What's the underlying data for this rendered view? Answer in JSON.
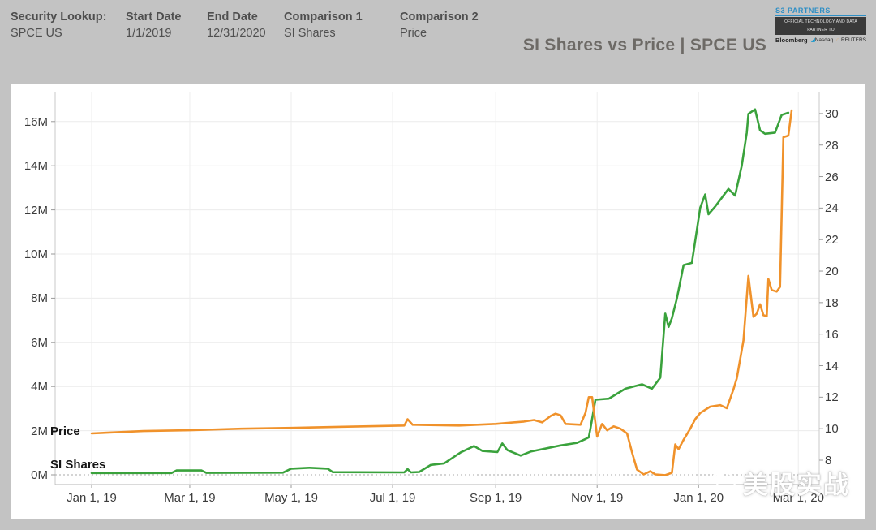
{
  "header": {
    "fields": [
      {
        "label": "Security Lookup:",
        "value": "SPCE US"
      },
      {
        "label": "Start Date",
        "value": "1/1/2019"
      },
      {
        "label": "End Date",
        "value": "12/31/2020"
      },
      {
        "label": "Comparison 1",
        "value": "SI Shares"
      },
      {
        "label": "Comparison 2",
        "value": "Price"
      }
    ],
    "title": "SI Shares vs Price | SPCE US",
    "logo": {
      "brand": "S3 PARTNERS",
      "tagline": "OFFICIAL TECHNOLOGY AND DATA PARTNER TO",
      "partners": [
        "Bloomberg",
        "Nasdaq",
        "REUTERS"
      ]
    }
  },
  "watermark": {
    "text": "美股实战"
  },
  "chart_data": {
    "type": "line",
    "title": "SI Shares vs Price | SPCE US",
    "grid": "on",
    "x_axis": {
      "tick_labels": [
        "Jan 1, 19",
        "Mar 1, 19",
        "May 1, 19",
        "Jul 1, 19",
        "Sep 1, 19",
        "Nov 1, 19",
        "Jan 1, 20",
        "Mar 1, 20"
      ],
      "tick_dates": [
        "2019-01-01",
        "2019-03-01",
        "2019-05-01",
        "2019-07-01",
        "2019-09-01",
        "2019-11-01",
        "2020-01-01",
        "2020-03-01"
      ]
    },
    "left_axis": {
      "title": "SI Shares",
      "tick_labels": [
        "0M",
        "2M",
        "4M",
        "6M",
        "8M",
        "10M",
        "12M",
        "14M",
        "16M"
      ],
      "tick_values": [
        0,
        2,
        4,
        6,
        8,
        10,
        12,
        14,
        16
      ],
      "unit": "millions of shares",
      "range": [
        0,
        16
      ]
    },
    "right_axis": {
      "title": "Price",
      "tick_labels": [
        "8",
        "10",
        "12",
        "14",
        "16",
        "18",
        "20",
        "22",
        "24",
        "26",
        "28",
        "30"
      ],
      "tick_values": [
        8,
        10,
        12,
        14,
        16,
        18,
        20,
        22,
        24,
        26,
        28,
        30
      ],
      "unit": "USD",
      "range": [
        8,
        30
      ]
    },
    "zero_line": {
      "style": "dotted",
      "left_axis_value": 0
    },
    "series": [
      {
        "name": "SI Shares",
        "axis": "left",
        "color": "#3aa23c",
        "points": [
          [
            "2019-01-01",
            0.08
          ],
          [
            "2019-02-18",
            0.08
          ],
          [
            "2019-02-21",
            0.2
          ],
          [
            "2019-03-08",
            0.2
          ],
          [
            "2019-03-11",
            0.09
          ],
          [
            "2019-04-26",
            0.1
          ],
          [
            "2019-05-01",
            0.28
          ],
          [
            "2019-05-12",
            0.32
          ],
          [
            "2019-05-23",
            0.28
          ],
          [
            "2019-05-26",
            0.12
          ],
          [
            "2019-07-08",
            0.11
          ],
          [
            "2019-07-10",
            0.26
          ],
          [
            "2019-07-12",
            0.11
          ],
          [
            "2019-07-17",
            0.13
          ],
          [
            "2019-07-24",
            0.45
          ],
          [
            "2019-08-01",
            0.52
          ],
          [
            "2019-08-11",
            1.02
          ],
          [
            "2019-08-19",
            1.3
          ],
          [
            "2019-08-24",
            1.08
          ],
          [
            "2019-09-02",
            1.03
          ],
          [
            "2019-09-05",
            1.42
          ],
          [
            "2019-09-08",
            1.12
          ],
          [
            "2019-09-16",
            0.87
          ],
          [
            "2019-09-22",
            1.05
          ],
          [
            "2019-10-10",
            1.33
          ],
          [
            "2019-10-20",
            1.45
          ],
          [
            "2019-10-25",
            1.62
          ],
          [
            "2019-10-27",
            1.7
          ],
          [
            "2019-10-28",
            2.1
          ],
          [
            "2019-10-31",
            3.4
          ],
          [
            "2019-11-08",
            3.45
          ],
          [
            "2019-11-18",
            3.9
          ],
          [
            "2019-11-28",
            4.1
          ],
          [
            "2019-12-04",
            3.9
          ],
          [
            "2019-12-09",
            4.4
          ],
          [
            "2019-12-12",
            7.3
          ],
          [
            "2019-12-14",
            6.7
          ],
          [
            "2019-12-16",
            7.1
          ],
          [
            "2019-12-19",
            8.0
          ],
          [
            "2019-12-23",
            9.5
          ],
          [
            "2019-12-28",
            9.6
          ],
          [
            "2020-01-02",
            12.1
          ],
          [
            "2020-01-05",
            12.7
          ],
          [
            "2020-01-07",
            11.8
          ],
          [
            "2020-01-11",
            12.15
          ],
          [
            "2020-01-19",
            12.95
          ],
          [
            "2020-01-23",
            12.65
          ],
          [
            "2020-01-27",
            14.0
          ],
          [
            "2020-01-30",
            15.5
          ],
          [
            "2020-01-31",
            16.35
          ],
          [
            "2020-02-04",
            16.55
          ],
          [
            "2020-02-07",
            15.6
          ],
          [
            "2020-02-10",
            15.45
          ],
          [
            "2020-02-16",
            15.5
          ],
          [
            "2020-02-20",
            16.3
          ],
          [
            "2020-02-24",
            16.4
          ]
        ]
      },
      {
        "name": "Price",
        "axis": "right",
        "color": "#f0922b",
        "points": [
          [
            "2019-01-01",
            9.7
          ],
          [
            "2019-02-01",
            9.85
          ],
          [
            "2019-03-01",
            9.9
          ],
          [
            "2019-04-01",
            10.0
          ],
          [
            "2019-05-01",
            10.05
          ],
          [
            "2019-06-01",
            10.12
          ],
          [
            "2019-07-08",
            10.2
          ],
          [
            "2019-07-10",
            10.6
          ],
          [
            "2019-07-13",
            10.25
          ],
          [
            "2019-08-10",
            10.2
          ],
          [
            "2019-09-01",
            10.3
          ],
          [
            "2019-09-18",
            10.45
          ],
          [
            "2019-09-24",
            10.55
          ],
          [
            "2019-09-29",
            10.4
          ],
          [
            "2019-10-04",
            10.8
          ],
          [
            "2019-10-07",
            10.95
          ],
          [
            "2019-10-10",
            10.85
          ],
          [
            "2019-10-13",
            10.3
          ],
          [
            "2019-10-22",
            10.25
          ],
          [
            "2019-10-25",
            11.0
          ],
          [
            "2019-10-27",
            12.0
          ],
          [
            "2019-10-29",
            12.0
          ],
          [
            "2019-11-01",
            9.5
          ],
          [
            "2019-11-04",
            10.3
          ],
          [
            "2019-11-07",
            9.9
          ],
          [
            "2019-11-11",
            10.15
          ],
          [
            "2019-11-15",
            10.0
          ],
          [
            "2019-11-19",
            9.7
          ],
          [
            "2019-11-22",
            8.5
          ],
          [
            "2019-11-25",
            7.4
          ],
          [
            "2019-11-29",
            7.1
          ],
          [
            "2019-12-03",
            7.3
          ],
          [
            "2019-12-06",
            7.1
          ],
          [
            "2019-12-12",
            7.05
          ],
          [
            "2019-12-16",
            7.2
          ],
          [
            "2019-12-18",
            9.0
          ],
          [
            "2019-12-20",
            8.7
          ],
          [
            "2019-12-23",
            9.3
          ],
          [
            "2019-12-27",
            10.0
          ],
          [
            "2019-12-30",
            10.6
          ],
          [
            "2020-01-02",
            11.0
          ],
          [
            "2020-01-08",
            11.4
          ],
          [
            "2020-01-14",
            11.5
          ],
          [
            "2020-01-18",
            11.3
          ],
          [
            "2020-01-22",
            12.5
          ],
          [
            "2020-01-24",
            13.2
          ],
          [
            "2020-01-28",
            15.6
          ],
          [
            "2020-01-31",
            19.7
          ],
          [
            "2020-02-03",
            17.1
          ],
          [
            "2020-02-05",
            17.3
          ],
          [
            "2020-02-07",
            17.9
          ],
          [
            "2020-02-09",
            17.2
          ],
          [
            "2020-02-11",
            17.15
          ],
          [
            "2020-02-12",
            19.5
          ],
          [
            "2020-02-14",
            18.8
          ],
          [
            "2020-02-17",
            18.7
          ],
          [
            "2020-02-19",
            19.0
          ],
          [
            "2020-02-21",
            28.5
          ],
          [
            "2020-02-24",
            28.6
          ],
          [
            "2020-02-26",
            30.2
          ]
        ]
      }
    ]
  }
}
